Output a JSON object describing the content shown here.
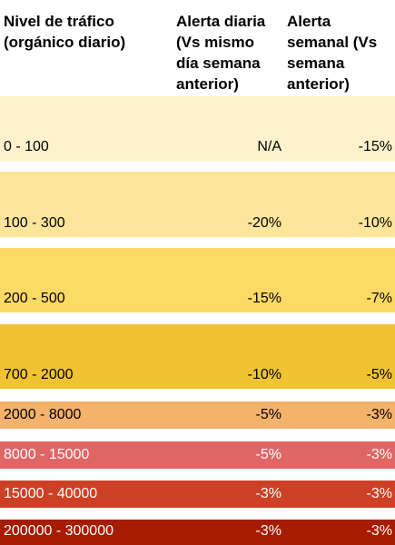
{
  "headers": {
    "level": "Nivel de tráfico\n(orgánico diario)",
    "daily": "Alerta diaria\n(Vs mismo\ndía semana\nanterior)",
    "weekly": "Alerta\nsemanal (Vs\nsemana\nanterior)"
  },
  "rows": [
    {
      "range": "0 - 100",
      "daily": "N/A",
      "weekly": "-15%",
      "color": "#fef2cc"
    },
    {
      "range": "100 - 300",
      "daily": "-20%",
      "weekly": "-10%",
      "color": "#fde59b"
    },
    {
      "range": "200 - 500",
      "daily": "-15%",
      "weekly": "-7%",
      "color": "#fdd966"
    },
    {
      "range": "700 - 2000",
      "daily": "-10%",
      "weekly": "-5%",
      "color": "#f1c232"
    },
    {
      "range": "2000 - 8000",
      "daily": "-5%",
      "weekly": "-3%",
      "color": "#f5b26b"
    },
    {
      "range": "8000 - 15000",
      "daily": "-5%",
      "weekly": "-3%",
      "color": "#e06666"
    },
    {
      "range": "15000 - 40000",
      "daily": "-3%",
      "weekly": "-3%",
      "color": "#cc4125"
    },
    {
      "range": "200000 - 300000",
      "daily": "-3%",
      "weekly": "-3%",
      "color": "#a61c00"
    }
  ]
}
